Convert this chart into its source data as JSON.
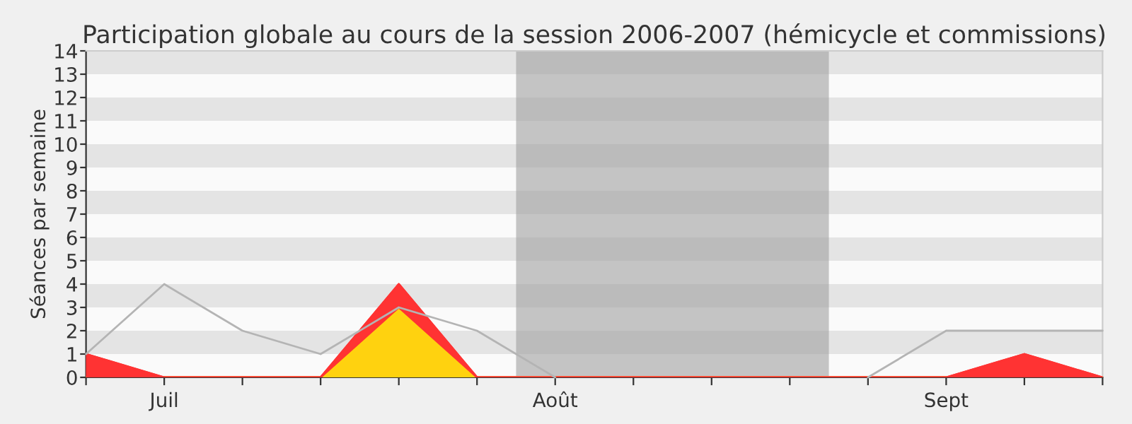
{
  "chart_data": {
    "type": "area",
    "title": "Participation globale au cours de la session 2006-2007 (hémicycle et commissions)",
    "ylabel": "Séances par semaine",
    "categories": [
      null,
      "Juil",
      null,
      null,
      null,
      null,
      "Août",
      null,
      null,
      null,
      null,
      "Sept",
      null,
      null
    ],
    "ylim": [
      0,
      14
    ],
    "yticks": [
      0,
      1,
      2,
      3,
      4,
      5,
      6,
      7,
      8,
      9,
      10,
      11,
      12,
      13,
      14
    ],
    "stacked": true,
    "series": [
      {
        "color": "#ffd20f",
        "values": [
          0,
          0,
          0,
          0,
          3,
          0,
          0,
          0,
          0,
          0,
          0,
          0,
          0,
          0
        ]
      },
      {
        "color": "#ff3333",
        "values": [
          1,
          0,
          0,
          0,
          1,
          0,
          0,
          0,
          0,
          0,
          0,
          0,
          1,
          0
        ]
      },
      {
        "type": "line",
        "color": "#b4b4b4",
        "values": [
          1,
          4,
          2,
          1,
          3,
          2,
          0,
          null,
          null,
          null,
          0,
          2,
          2,
          2
        ]
      }
    ]
  }
}
